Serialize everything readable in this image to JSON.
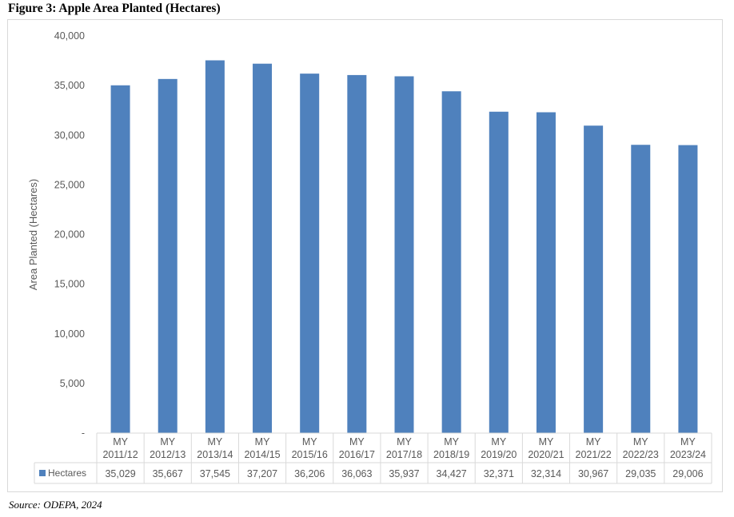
{
  "figure": {
    "title": "Figure 3: Apple Area Planted (Hectares)",
    "source": "Source: ODEPA, 2024"
  },
  "chart_data": {
    "type": "bar",
    "title": "",
    "xlabel": "",
    "ylabel": "Area Planted (Hectares)",
    "ylim": [
      0,
      40000
    ],
    "ytick_values": [
      0,
      5000,
      10000,
      15000,
      20000,
      25000,
      30000,
      35000,
      40000
    ],
    "ytick_labels": [
      "-",
      "5,000",
      "10,000",
      "15,000",
      "20,000",
      "25,000",
      "30,000",
      "35,000",
      "40,000"
    ],
    "grid": false,
    "legend": "data-table",
    "bar_color": "#4f81bd",
    "categories": [
      [
        "MY",
        "2011/12"
      ],
      [
        "MY",
        "2012/13"
      ],
      [
        "MY",
        "2013/14"
      ],
      [
        "MY",
        "2014/15"
      ],
      [
        "MY",
        "2015/16"
      ],
      [
        "MY",
        "2016/17"
      ],
      [
        "MY",
        "2017/18"
      ],
      [
        "MY",
        "2018/19"
      ],
      [
        "MY",
        "2019/20"
      ],
      [
        "MY",
        "2020/21"
      ],
      [
        "MY",
        "2021/22"
      ],
      [
        "MY",
        "2022/23"
      ],
      [
        "MY",
        "2023/24"
      ]
    ],
    "series": [
      {
        "name": "Hectares",
        "values": [
          35029,
          35667,
          37545,
          37207,
          36206,
          36063,
          35937,
          34427,
          32371,
          32314,
          30967,
          29035,
          29006
        ],
        "value_labels": [
          "35,029",
          "35,667",
          "37,545",
          "37,207",
          "36,206",
          "36,063",
          "35,937",
          "34,427",
          "32,371",
          "32,314",
          "30,967",
          "29,035",
          "29,006"
        ]
      }
    ]
  }
}
